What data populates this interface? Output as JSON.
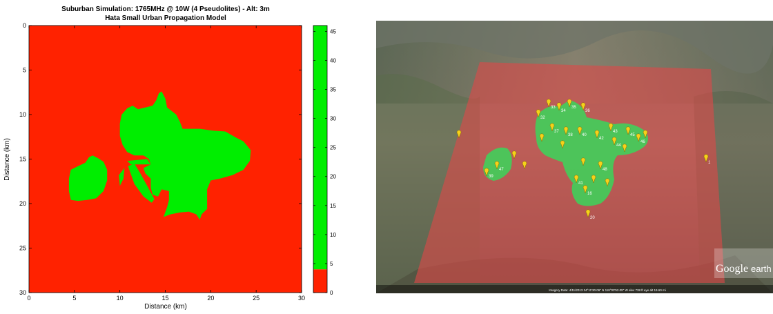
{
  "chart_data": {
    "type": "heatmap",
    "title": "Suburban Simulation: 1765MHz @ 10W (4 Pseudolites) - Alt: 3m",
    "subtitle": "Hata Small Urban Propagation Model",
    "xlabel": "Distance (km)",
    "ylabel": "Distance (km)",
    "xlim": [
      0,
      30
    ],
    "ylim": [
      30,
      0
    ],
    "x_ticks": [
      0,
      5,
      10,
      15,
      20,
      25,
      30
    ],
    "y_ticks": [
      0,
      5,
      10,
      15,
      20,
      25,
      30
    ],
    "colorbar": {
      "range": [
        0,
        46
      ],
      "ticks": [
        0,
        5,
        10,
        15,
        20,
        25,
        30,
        35,
        40,
        45
      ],
      "threshold": 4,
      "low_color": "#ff2200",
      "high_color": "#00ee00"
    },
    "coverage_regions": [
      {
        "points": [
          [
            4.4,
            17.2
          ],
          [
            4.6,
            16.2
          ],
          [
            5.4,
            15.8
          ],
          [
            6.2,
            15.4
          ],
          [
            6.6,
            14.8
          ],
          [
            7.0,
            14.6
          ],
          [
            7.6,
            14.9
          ],
          [
            8.2,
            15.3
          ],
          [
            8.6,
            16.2
          ],
          [
            8.6,
            17.4
          ],
          [
            8.2,
            18.6
          ],
          [
            7.4,
            19.4
          ],
          [
            6.4,
            19.6
          ],
          [
            5.4,
            19.7
          ],
          [
            4.6,
            19.6
          ],
          [
            4.4,
            18.6
          ]
        ]
      },
      {
        "points": [
          [
            9.9,
            16.8
          ],
          [
            10.5,
            16.0
          ],
          [
            10.4,
            17.2
          ],
          [
            10.0,
            18.0
          ]
        ]
      },
      {
        "points": [
          [
            10.0,
            11.0
          ],
          [
            10.2,
            10.0
          ],
          [
            10.8,
            9.3
          ],
          [
            11.4,
            9.0
          ],
          [
            12.0,
            9.4
          ],
          [
            12.8,
            9.2
          ],
          [
            13.6,
            9.0
          ],
          [
            14.0,
            8.4
          ],
          [
            14.3,
            7.6
          ],
          [
            14.6,
            7.4
          ],
          [
            15.0,
            8.2
          ],
          [
            15.2,
            9.2
          ],
          [
            15.7,
            9.6
          ],
          [
            16.2,
            10.0
          ],
          [
            16.6,
            10.8
          ],
          [
            16.9,
            11.6
          ],
          [
            17.7,
            11.6
          ],
          [
            18.8,
            11.6
          ],
          [
            20.2,
            11.8
          ],
          [
            21.6,
            11.9
          ],
          [
            22.8,
            12.6
          ],
          [
            23.6,
            13.0
          ],
          [
            24.4,
            14.0
          ],
          [
            24.3,
            15.2
          ],
          [
            23.6,
            16.2
          ],
          [
            22.4,
            16.8
          ],
          [
            21.0,
            17.2
          ],
          [
            20.0,
            17.4
          ],
          [
            19.6,
            18.4
          ],
          [
            19.6,
            19.4
          ],
          [
            19.6,
            20.6
          ],
          [
            19.0,
            21.2
          ],
          [
            18.8,
            21.8
          ],
          [
            18.4,
            21.2
          ],
          [
            17.6,
            20.9
          ],
          [
            16.6,
            21.0
          ],
          [
            15.6,
            21.2
          ],
          [
            14.8,
            21.5
          ],
          [
            15.2,
            20.4
          ],
          [
            15.4,
            19.6
          ],
          [
            15.4,
            18.6
          ],
          [
            14.6,
            18.4
          ],
          [
            14.2,
            19.2
          ],
          [
            13.6,
            19.0
          ],
          [
            13.4,
            18.2
          ],
          [
            13.4,
            17.2
          ],
          [
            12.8,
            16.6
          ],
          [
            12.6,
            16.0
          ],
          [
            13.4,
            15.6
          ],
          [
            13.2,
            15.0
          ],
          [
            12.6,
            14.6
          ],
          [
            11.6,
            14.6
          ],
          [
            10.8,
            14.2
          ],
          [
            10.3,
            13.4
          ],
          [
            10.0,
            12.4
          ]
        ]
      },
      {
        "points": [
          [
            10.8,
            15.2
          ],
          [
            13.0,
            15.0
          ],
          [
            13.4,
            15.6
          ],
          [
            12.6,
            15.6
          ],
          [
            11.2,
            15.6
          ]
        ]
      },
      {
        "points": [
          [
            10.9,
            15.8
          ],
          [
            11.6,
            15.5
          ],
          [
            12.2,
            16.5
          ],
          [
            12.9,
            17.8
          ],
          [
            13.8,
            19.5
          ],
          [
            13.5,
            19.9
          ],
          [
            12.6,
            19.2
          ],
          [
            11.6,
            17.8
          ]
        ]
      }
    ]
  },
  "map_image": {
    "watermark_word1": "Google",
    "watermark_word2": "earth",
    "overlay_color": "#e04848",
    "coverage_color": "#3ad65a",
    "pin_color": "#f5d21a",
    "pin_labels": [
      "1",
      "16",
      "20",
      "39",
      "41",
      "32",
      "33",
      "34",
      "35",
      "36",
      "37",
      "38",
      "40",
      "42",
      "43",
      "44",
      "45",
      "46",
      "47",
      "48"
    ],
    "footer_text": "Imagery Date: 4/11/2013   34°11'30.06\" N  118°03'52.05\" W  elev  738 ft    eye alt  19.60 mi"
  }
}
